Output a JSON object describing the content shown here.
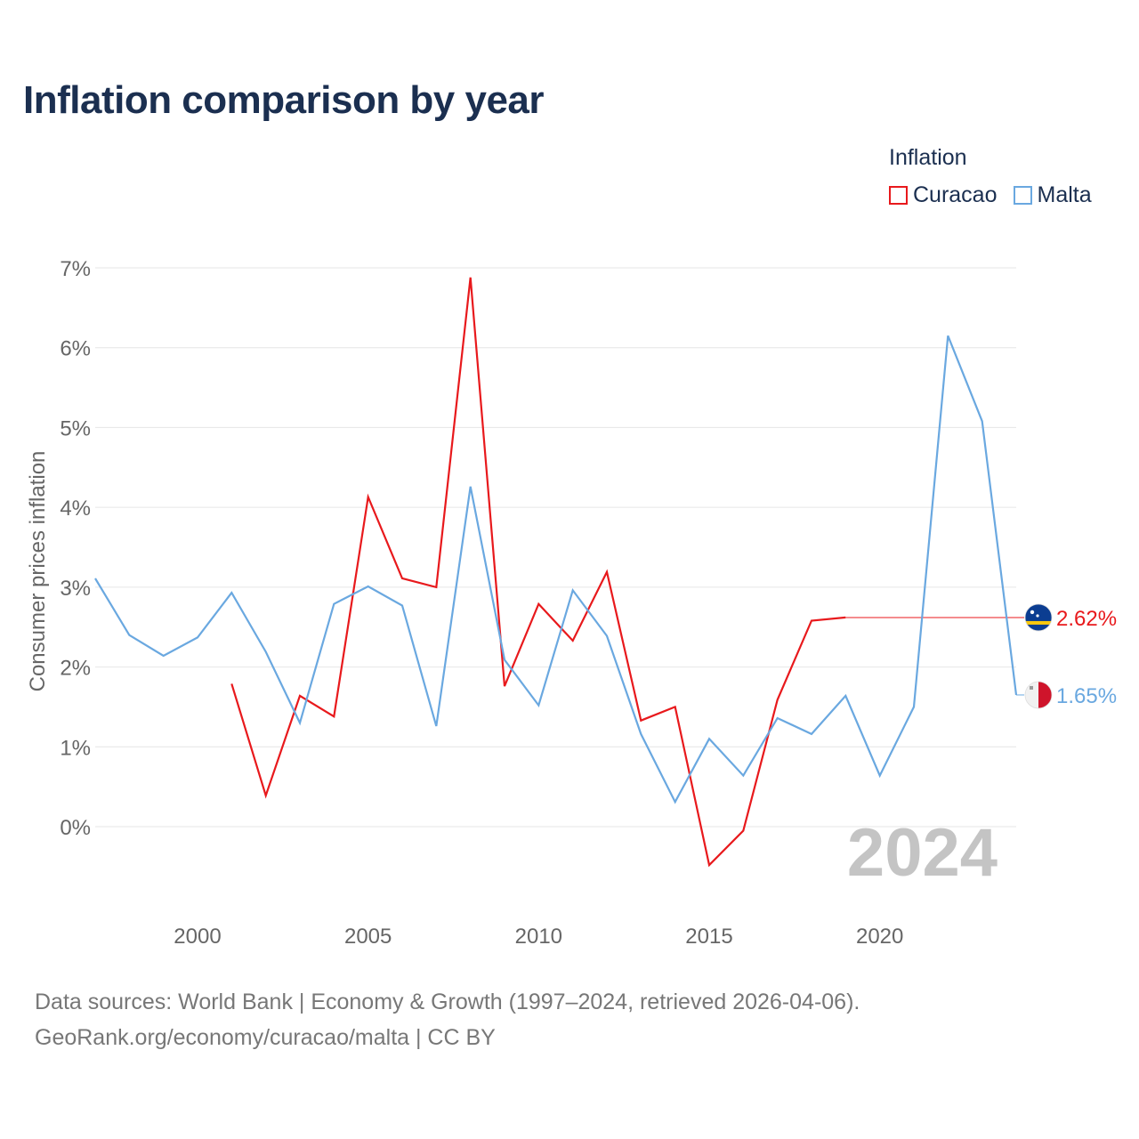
{
  "title": "Inflation comparison by year",
  "legend_title": "Inflation",
  "footer": {
    "line1": "Data sources: World Bank | Economy & Growth (1997–2024, retrieved 2026-04-06).",
    "line2": "GeoRank.org/economy/curacao/malta | CC BY"
  },
  "chart_data": {
    "type": "line",
    "title": "Inflation comparison by year",
    "xlabel": "",
    "ylabel": "Consumer prices inflation",
    "xlim": [
      1997,
      2024
    ],
    "ylim": [
      -1,
      7
    ],
    "x_ticks": [
      2000,
      2005,
      2010,
      2015,
      2020
    ],
    "y_ticks": [
      0,
      1,
      2,
      3,
      4,
      5,
      6,
      7
    ],
    "y_tick_labels": [
      "0%",
      "1%",
      "2%",
      "3%",
      "4%",
      "5%",
      "6%",
      "7%"
    ],
    "grid": true,
    "legend_position": "top-right",
    "year_watermark": "2024",
    "series": [
      {
        "name": "Curacao",
        "color": "#e8191c",
        "end_label": "2.62%",
        "flag": "curacao-flag",
        "points": [
          [
            2001,
            1.79
          ],
          [
            2002,
            0.39
          ],
          [
            2003,
            1.64
          ],
          [
            2004,
            1.38
          ],
          [
            2005,
            4.13
          ],
          [
            2006,
            3.11
          ],
          [
            2007,
            3.0
          ],
          [
            2008,
            6.88
          ],
          [
            2009,
            1.76
          ],
          [
            2010,
            2.79
          ],
          [
            2011,
            2.33
          ],
          [
            2012,
            3.19
          ],
          [
            2013,
            1.33
          ],
          [
            2014,
            1.5
          ],
          [
            2015,
            -0.48
          ],
          [
            2016,
            -0.05
          ],
          [
            2017,
            1.59
          ],
          [
            2018,
            2.58
          ],
          [
            2019,
            2.62
          ]
        ],
        "extend_to": 2024,
        "end_value": 2.62
      },
      {
        "name": "Malta",
        "color": "#6aa8e0",
        "end_label": "1.65%",
        "flag": "malta-flag",
        "points": [
          [
            1997,
            3.11
          ],
          [
            1998,
            2.4
          ],
          [
            1999,
            2.14
          ],
          [
            2000,
            2.37
          ],
          [
            2001,
            2.93
          ],
          [
            2002,
            2.19
          ],
          [
            2003,
            1.3
          ],
          [
            2004,
            2.79
          ],
          [
            2005,
            3.01
          ],
          [
            2006,
            2.77
          ],
          [
            2007,
            1.26
          ],
          [
            2008,
            4.26
          ],
          [
            2009,
            2.09
          ],
          [
            2010,
            1.52
          ],
          [
            2011,
            2.96
          ],
          [
            2012,
            2.39
          ],
          [
            2013,
            1.16
          ],
          [
            2014,
            0.31
          ],
          [
            2015,
            1.1
          ],
          [
            2016,
            0.64
          ],
          [
            2017,
            1.36
          ],
          [
            2018,
            1.16
          ],
          [
            2019,
            1.64
          ],
          [
            2020,
            0.64
          ],
          [
            2021,
            1.5
          ],
          [
            2022,
            6.15
          ],
          [
            2023,
            5.08
          ],
          [
            2024,
            1.65
          ]
        ],
        "end_value": 1.65
      }
    ]
  }
}
